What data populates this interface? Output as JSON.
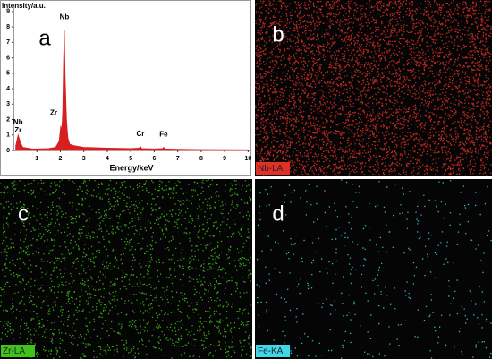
{
  "chart_data": {
    "type": "area",
    "panel_label": "a",
    "y_label": "Intensity/a.u.",
    "x_label": "Energy/keV",
    "color": "#d62020",
    "x": [
      0.1,
      0.2,
      0.3,
      0.4,
      0.6,
      0.8,
      1.0,
      1.5,
      1.8,
      1.95,
      2.02,
      2.06,
      2.1,
      2.14,
      2.17,
      2.2,
      2.26,
      2.32,
      2.4,
      2.6,
      2.8,
      3.0,
      4.0,
      5.0,
      5.35,
      5.41,
      5.47,
      6.0,
      6.35,
      6.4,
      6.45,
      7.0,
      8.0,
      9.0,
      10.0
    ],
    "values": [
      0.3,
      1.0,
      0.5,
      0.2,
      0.15,
      0.1,
      0.1,
      0.12,
      0.2,
      0.6,
      1.6,
      1.2,
      2.5,
      6.0,
      7.8,
      5.0,
      2.0,
      0.8,
      0.4,
      0.3,
      0.25,
      0.2,
      0.15,
      0.12,
      0.15,
      0.25,
      0.12,
      0.1,
      0.12,
      0.2,
      0.1,
      0.08,
      0.06,
      0.05,
      0.04
    ],
    "xlim": [
      0,
      10.1
    ],
    "ylim": [
      0,
      9.4
    ],
    "xticks": [
      1,
      2,
      3,
      4,
      5,
      6,
      7,
      8,
      9,
      10
    ],
    "yticks": [
      0,
      1,
      2,
      3,
      4,
      5,
      6,
      7,
      8,
      9
    ],
    "annotations": [
      {
        "text": "Nb",
        "x": 0.2
      },
      {
        "text": "Zr",
        "x": 0.2
      },
      {
        "text": "Zr",
        "x": 2.02
      },
      {
        "text": "Nb",
        "x": 2.17
      },
      {
        "text": "Cr",
        "x": 5.41
      },
      {
        "text": "Fe",
        "x": 6.4
      }
    ]
  },
  "maps": [
    {
      "panel_label": "b",
      "element": "Nb-LA",
      "color": "#e03028"
    },
    {
      "panel_label": "c",
      "element": "Zr-LA",
      "color": "#3fc21c"
    },
    {
      "panel_label": "d",
      "element": "Fe-KA",
      "color": "#40d8e8"
    }
  ]
}
